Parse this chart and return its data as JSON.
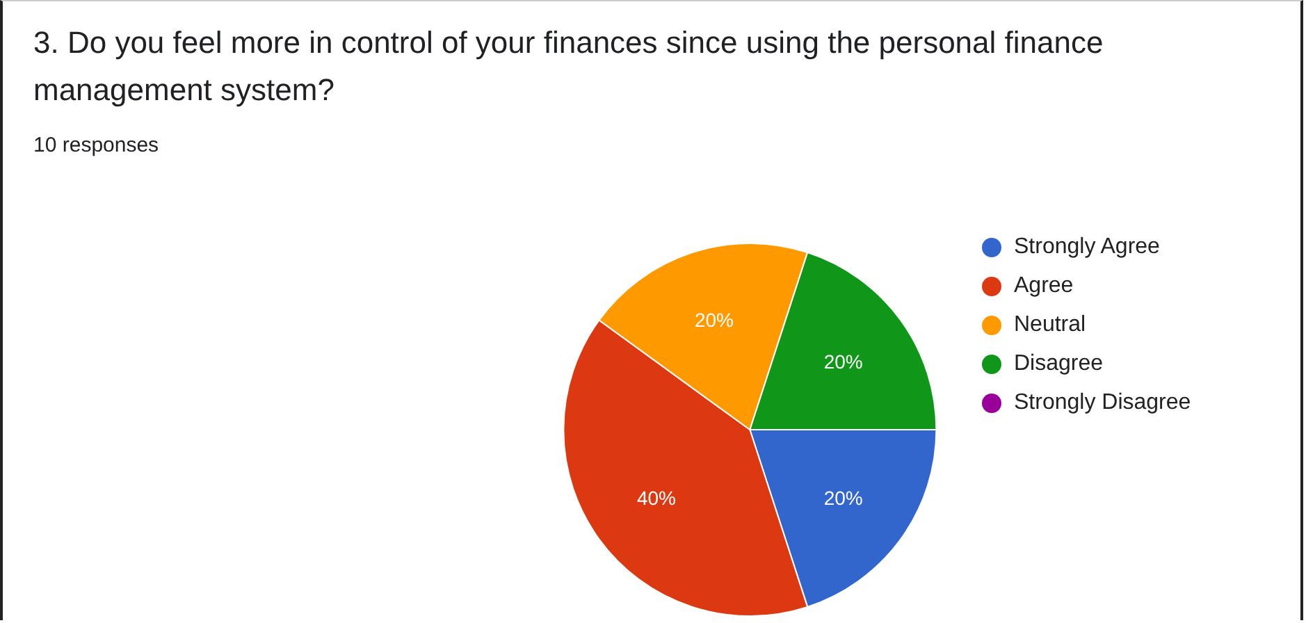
{
  "chart_data": {
    "type": "pie",
    "title": "3. Do you feel more in control of your finances since using the personal finance management system?",
    "subtitle": "10 responses",
    "categories": [
      "Strongly Agree",
      "Agree",
      "Neutral",
      "Disagree",
      "Strongly Disagree"
    ],
    "values": [
      20,
      40,
      20,
      20,
      0
    ],
    "colors": [
      "#3366cc",
      "#dc3912",
      "#ff9900",
      "#109618",
      "#990099"
    ],
    "value_labels": [
      "20%",
      "40%",
      "20%",
      "20%",
      null
    ],
    "legend": "right"
  }
}
